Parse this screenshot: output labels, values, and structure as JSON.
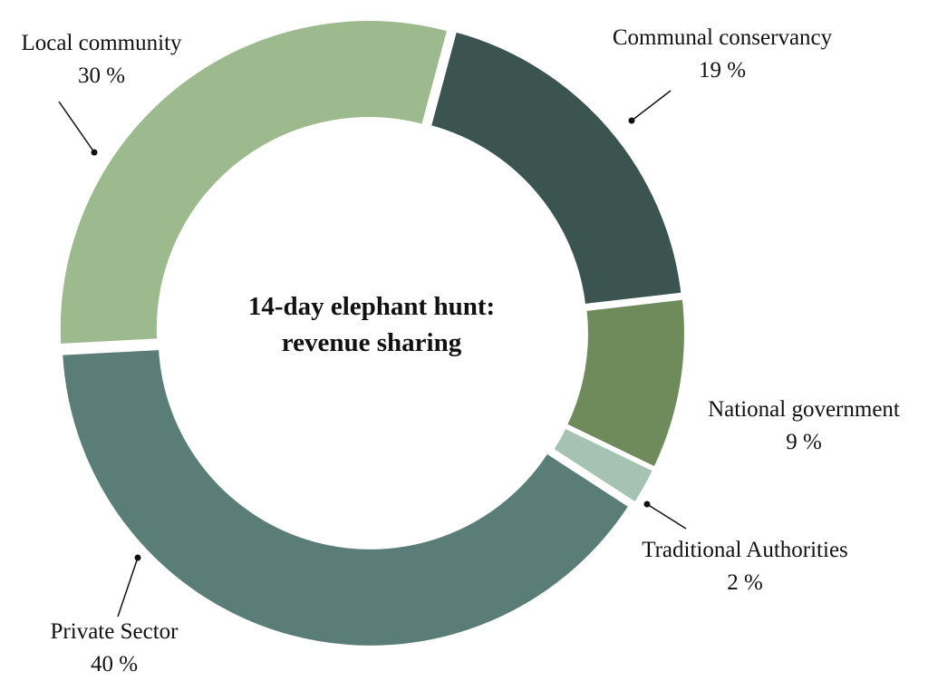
{
  "chart_data": {
    "type": "pie",
    "donut": true,
    "title": "14-day elephant hunt: revenue sharing",
    "title_lines": [
      "14-day elephant hunt:",
      "revenue sharing"
    ],
    "unit": "%",
    "slices": [
      {
        "label": "Communal conservancy",
        "value": 19,
        "value_text": "19 %",
        "color": "#3b5450"
      },
      {
        "label": "National government",
        "value": 9,
        "value_text": "9 %",
        "color": "#6f8b5c"
      },
      {
        "label": "Traditional Authorities",
        "value": 2,
        "value_text": "2 %",
        "color": "#a5c2b2"
      },
      {
        "label": "Private Sector",
        "value": 40,
        "value_text": "40 %",
        "color": "#5b7d78"
      },
      {
        "label": "Local community",
        "value": 30,
        "value_text": "30 %",
        "color": "#9dba8e"
      }
    ],
    "legend": "none"
  }
}
